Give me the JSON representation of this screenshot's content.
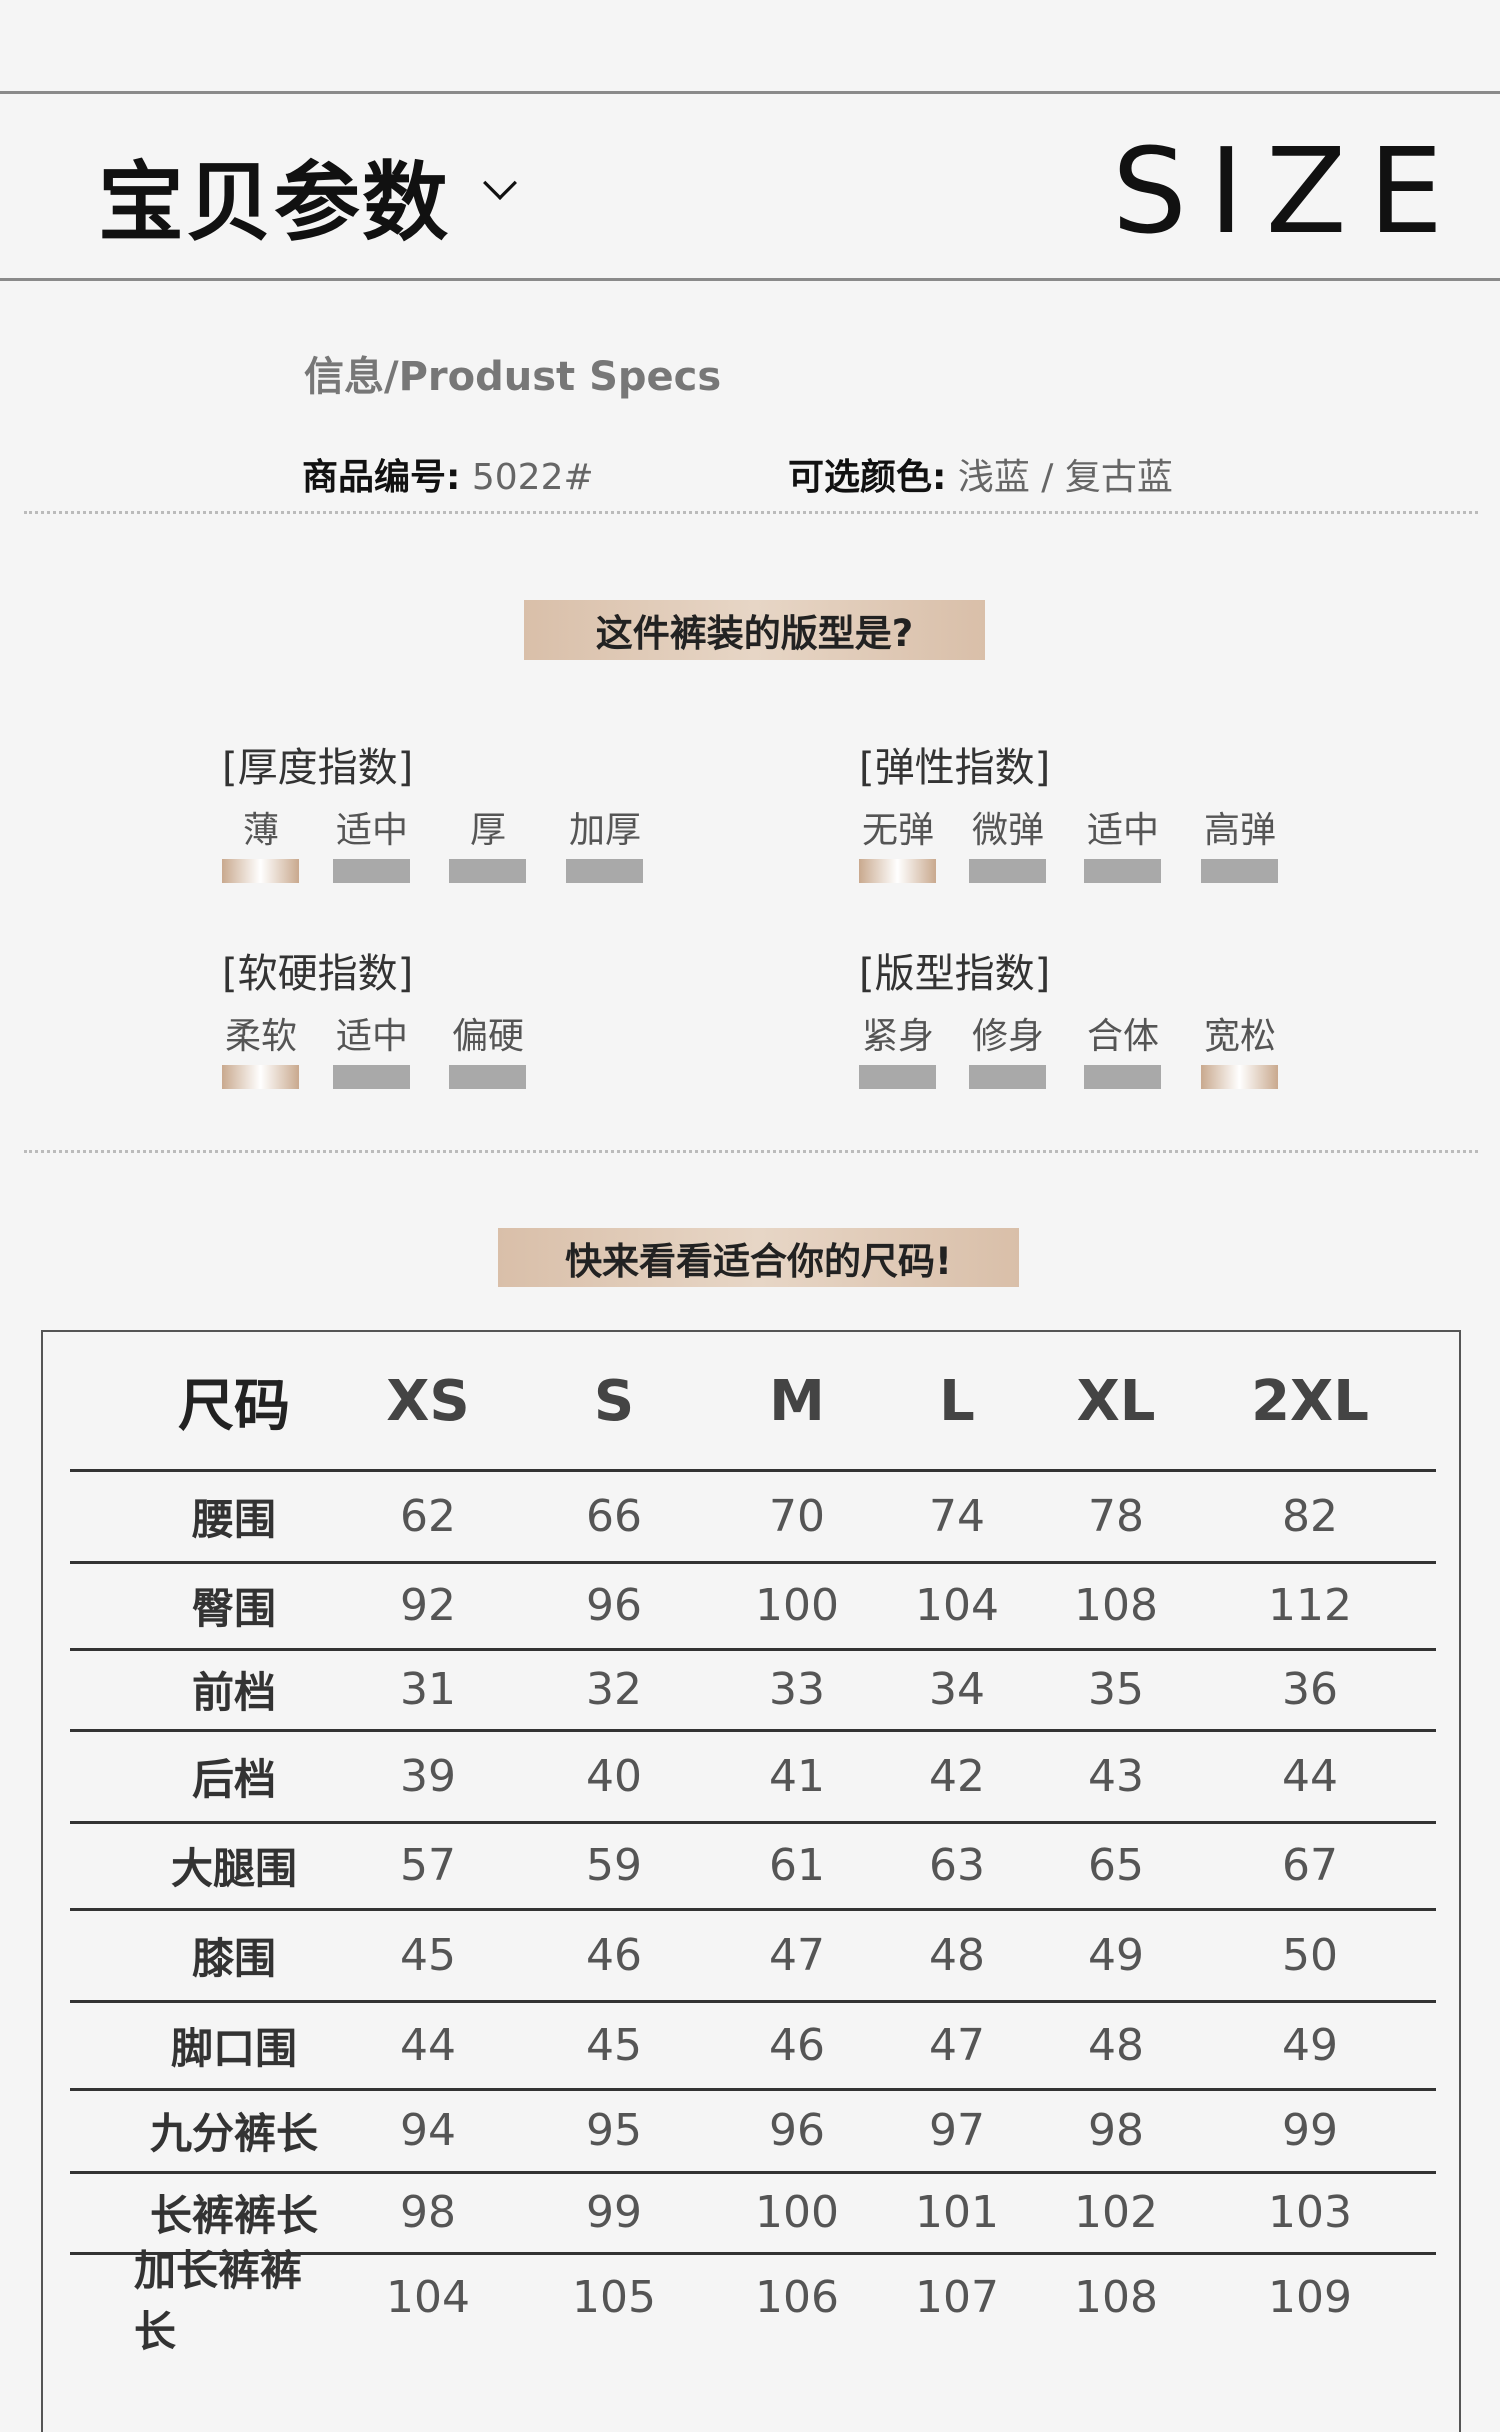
{
  "header": {
    "title": "宝贝参数",
    "size_label": "SIZE"
  },
  "info": {
    "heading": "信息/Produst Specs",
    "item_no_label": "商品编号:",
    "item_no_value": "5022#",
    "color_label": "可选颜色:",
    "color_value": "浅蓝 / 复古蓝"
  },
  "fit_banner": "这件裤装的版型是?",
  "indices": [
    {
      "title": "[厚度指数]",
      "options": [
        "薄",
        "适中",
        "厚",
        "加厚"
      ],
      "selected": "薄"
    },
    {
      "title": "[弹性指数]",
      "options": [
        "无弹",
        "微弹",
        "适中",
        "高弹"
      ],
      "selected": "无弹"
    },
    {
      "title": "[软硬指数]",
      "options": [
        "柔软",
        "适中",
        "偏硬"
      ],
      "selected": "柔软"
    },
    {
      "title": "[版型指数]",
      "options": [
        "紧身",
        "修身",
        "合体",
        "宽松"
      ],
      "selected": "宽松"
    }
  ],
  "size_banner": "快来看看适合你的尺码!",
  "size_table": {
    "headers": [
      "尺码",
      "XS",
      "S",
      "M",
      "L",
      "XL",
      "2XL"
    ],
    "rows": [
      [
        "腰围",
        "62",
        "66",
        "70",
        "74",
        "78",
        "82"
      ],
      [
        "臀围",
        "92",
        "96",
        "100",
        "104",
        "108",
        "112"
      ],
      [
        "前档",
        "31",
        "32",
        "33",
        "34",
        "35",
        "36"
      ],
      [
        "后档",
        "39",
        "40",
        "41",
        "42",
        "43",
        "44"
      ],
      [
        "大腿围",
        "57",
        "59",
        "61",
        "63",
        "65",
        "67"
      ],
      [
        "膝围",
        "45",
        "46",
        "47",
        "48",
        "49",
        "50"
      ],
      [
        "脚口围",
        "44",
        "45",
        "46",
        "47",
        "48",
        "49"
      ],
      [
        "九分裤长",
        "94",
        "95",
        "96",
        "97",
        "98",
        "99"
      ],
      [
        "长裤裤长",
        "98",
        "99",
        "100",
        "101",
        "102",
        "103"
      ],
      [
        "加长裤裤长",
        "104",
        "105",
        "106",
        "107",
        "108",
        "109"
      ]
    ]
  },
  "colors": {
    "accent": "#d9bfa9",
    "bar_inactive": "#a9a9a9",
    "background": "#f5f5f5"
  }
}
